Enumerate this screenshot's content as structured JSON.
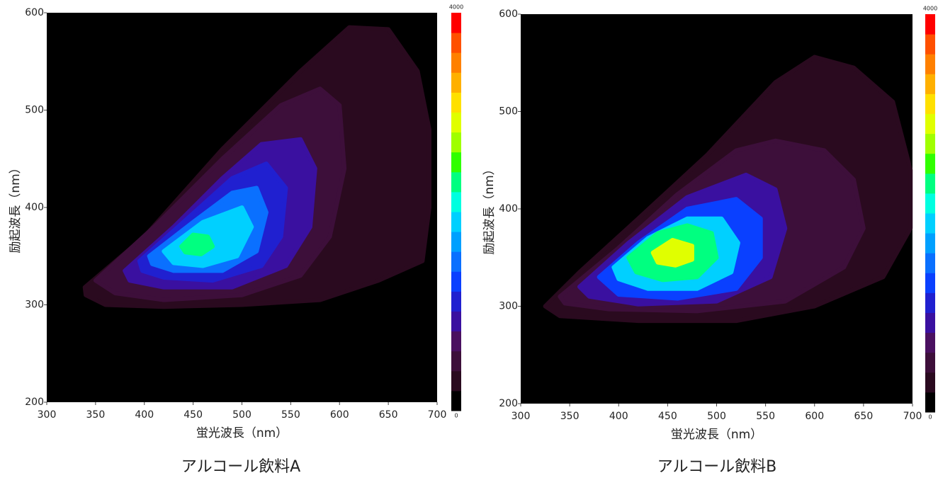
{
  "chart_data": [
    {
      "type": "contour",
      "caption": "アルコール飲料A",
      "xlabel": "蛍光波長（nm）",
      "ylabel": "励起波長（nm）",
      "xlim": [
        300,
        700
      ],
      "xticks": [
        300,
        350,
        400,
        450,
        500,
        550,
        600,
        650,
        700
      ],
      "ylim": [
        200,
        600
      ],
      "yticks": [
        200,
        300,
        400,
        500,
        600
      ],
      "zlim": [
        0,
        4000
      ],
      "zticks": [
        0,
        4000
      ],
      "colorscale": [
        "#000000",
        "#2a0a1f",
        "#3d0f3a",
        "#4a1060",
        "#3a10a0",
        "#2020d0",
        "#0a40ff",
        "#0a70ff",
        "#00a0ff",
        "#00d0ff",
        "#00ffe0",
        "#00ff80",
        "#30ff00",
        "#a0ff00",
        "#e0ff00",
        "#ffe000",
        "#ffb000",
        "#ff8000",
        "#ff5000",
        "#ff0000"
      ],
      "contours": [
        {
          "level": 250,
          "x": [
            339,
            400,
            480,
            560,
            610,
            650,
            680,
            692,
            692,
            685,
            640,
            580,
            500,
            420,
            360,
            340
          ],
          "y": [
            318,
            370,
            460,
            540,
            585,
            583,
            540,
            480,
            400,
            345,
            325,
            305,
            300,
            298,
            300,
            310
          ]
        },
        {
          "level": 500,
          "x": [
            350,
            410,
            480,
            540,
            580,
            600,
            605,
            590,
            560,
            500,
            420,
            370
          ],
          "y": [
            325,
            380,
            450,
            505,
            522,
            505,
            440,
            370,
            330,
            310,
            305,
            312
          ]
        },
        {
          "level": 800,
          "x": [
            380,
            430,
            480,
            520,
            560,
            575,
            570,
            545,
            490,
            420,
            385
          ],
          "y": [
            335,
            380,
            430,
            465,
            470,
            440,
            380,
            340,
            318,
            318,
            325
          ]
        },
        {
          "level": 1100,
          "x": [
            395,
            440,
            490,
            525,
            545,
            540,
            520,
            470,
            420,
            398
          ],
          "y": [
            345,
            385,
            430,
            445,
            420,
            370,
            340,
            325,
            328,
            335
          ]
        },
        {
          "level": 1500,
          "x": [
            405,
            450,
            490,
            515,
            525,
            515,
            480,
            430,
            408
          ],
          "y": [
            350,
            385,
            415,
            420,
            395,
            355,
            335,
            335,
            342
          ]
        },
        {
          "level": 1900,
          "x": [
            420,
            460,
            500,
            510,
            495,
            460,
            430
          ],
          "y": [
            355,
            385,
            400,
            380,
            350,
            340,
            343
          ]
        },
        {
          "level": 2300,
          "x": [
            438,
            450,
            465,
            470,
            458,
            442
          ],
          "y": [
            360,
            372,
            370,
            360,
            352,
            354
          ]
        }
      ]
    },
    {
      "type": "contour",
      "caption": "アルコール飲料B",
      "xlabel": "蛍光波長（nm）",
      "ylabel": "励起波長（nm）",
      "xlim": [
        300,
        700
      ],
      "xticks": [
        300,
        350,
        400,
        450,
        500,
        550,
        600,
        650,
        700
      ],
      "ylim": [
        200,
        600
      ],
      "yticks": [
        200,
        300,
        400,
        500,
        600
      ],
      "zlim": [
        0,
        4000
      ],
      "zticks": [
        0,
        4000
      ],
      "colorscale": [
        "#000000",
        "#2a0a1f",
        "#3d0f3a",
        "#4a1060",
        "#3a10a0",
        "#2020d0",
        "#0a40ff",
        "#0a70ff",
        "#00a0ff",
        "#00d0ff",
        "#00ffe0",
        "#00ff80",
        "#30ff00",
        "#a0ff00",
        "#e0ff00",
        "#ffe000",
        "#ffb000",
        "#ff8000",
        "#ff5000",
        "#ff0000"
      ],
      "contours": [
        {
          "level": 250,
          "x": [
            325,
            360,
            420,
            490,
            560,
            600,
            640,
            680,
            698,
            698,
            670,
            600,
            520,
            420,
            340
          ],
          "y": [
            300,
            335,
            390,
            455,
            530,
            556,
            545,
            510,
            440,
            380,
            330,
            300,
            285,
            285,
            290
          ]
        },
        {
          "level": 500,
          "x": [
            340,
            400,
            460,
            520,
            560,
            610,
            640,
            650,
            630,
            570,
            480,
            390,
            345
          ],
          "y": [
            310,
            360,
            415,
            460,
            470,
            460,
            430,
            380,
            340,
            305,
            295,
            297,
            303
          ]
        },
        {
          "level": 800,
          "x": [
            360,
            410,
            470,
            530,
            560,
            570,
            555,
            500,
            420,
            370
          ],
          "y": [
            320,
            365,
            412,
            435,
            420,
            380,
            330,
            305,
            302,
            310
          ]
        },
        {
          "level": 1300,
          "x": [
            380,
            420,
            470,
            520,
            545,
            545,
            520,
            460,
            400
          ],
          "y": [
            330,
            365,
            400,
            410,
            390,
            350,
            318,
            308,
            312
          ]
        },
        {
          "level": 1900,
          "x": [
            395,
            430,
            470,
            505,
            522,
            515,
            480,
            430,
            400
          ],
          "y": [
            340,
            370,
            390,
            390,
            365,
            335,
            318,
            318,
            328
          ]
        },
        {
          "level": 2300,
          "x": [
            410,
            440,
            470,
            495,
            500,
            480,
            445,
            418
          ],
          "y": [
            350,
            375,
            383,
            375,
            350,
            330,
            327,
            335
          ]
        },
        {
          "level": 2900,
          "x": [
            435,
            455,
            475,
            475,
            458,
            440
          ],
          "y": [
            355,
            368,
            362,
            348,
            342,
            345
          ]
        }
      ]
    }
  ]
}
